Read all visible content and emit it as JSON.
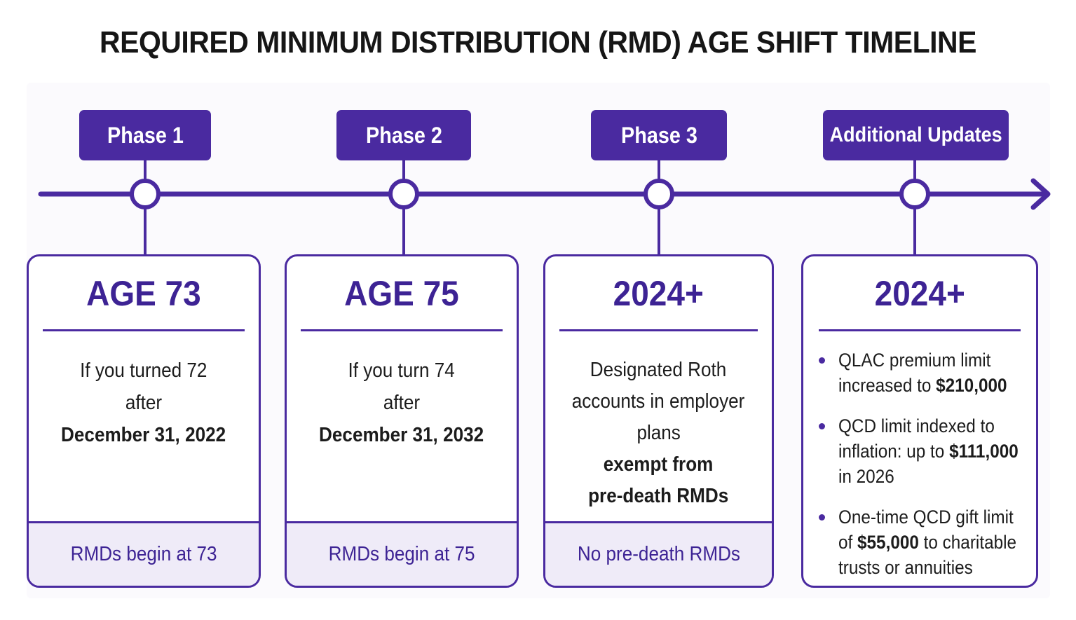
{
  "title": "REQUIRED MINIMUM DISTRIBUTION (RMD) AGE SHIFT TIMELINE",
  "colors": {
    "accent": "#4a2aa0",
    "heading": "#3d2394",
    "footer_bg": "#efebf8",
    "text": "#1c1c1c"
  },
  "phases": [
    {
      "label": "Phase 1",
      "heading": "AGE 73",
      "body": [
        "If you turned 72",
        "after"
      ],
      "body_bold": [
        "December 31, 2022"
      ],
      "footer": "RMDs begin at 73"
    },
    {
      "label": "Phase 2",
      "heading": "AGE 75",
      "body": [
        "If you turn 74",
        "after"
      ],
      "body_bold": [
        "December 31, 2032"
      ],
      "footer": "RMDs begin at 75"
    },
    {
      "label": "Phase 3",
      "heading": "2024+",
      "body": [
        "Designated Roth",
        "accounts in employer",
        "plans"
      ],
      "body_bold": [
        "exempt from",
        "pre-death RMDs"
      ],
      "footer": "No pre-death RMDs"
    },
    {
      "label": "Additional Updates",
      "heading": "2024+",
      "bullets": [
        {
          "line1": "QLAC premium limit",
          "line2_pre": "increased to ",
          "line2_bold": "$210,000",
          "line2_post": "",
          "line3": ""
        },
        {
          "line1": "QCD limit indexed to",
          "line2_pre": "inflation: up to ",
          "line2_bold": "$111,000",
          "line2_post": "",
          "line3": "in 2026"
        },
        {
          "line1": "One-time QCD gift limit",
          "line2_pre": "of ",
          "line2_bold": "$55,000",
          "line2_post": " to charitable",
          "line3": "trusts or annuities"
        }
      ]
    }
  ],
  "icons": {
    "timeline_node": "ring-node-icon",
    "timeline_arrow": "arrow-right-icon",
    "bullet": "bullet-dot-icon"
  }
}
